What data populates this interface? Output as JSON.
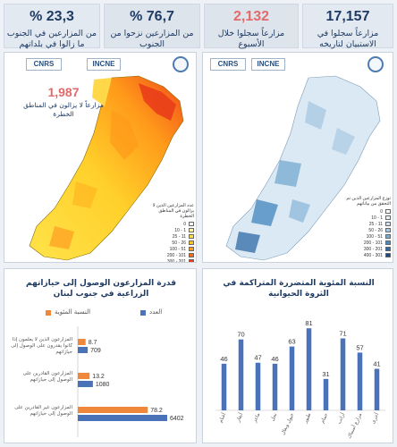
{
  "stats": [
    {
      "value": "23,3 %",
      "label": "من المزارعين في الجنوب ما زالوا في بلداتهم",
      "red": false
    },
    {
      "value": "76,7 %",
      "label": "من المزارعين نزحوا من الجنوب",
      "red": false
    },
    {
      "value": "2,132",
      "label": "مزارعاً سجلوا خلال الأسبوع",
      "red": true
    },
    {
      "value": "17,157",
      "label": "مزارعاً سجلوا في الاستبيان لتاريخه",
      "red": false
    }
  ],
  "left_map": {
    "logo1": "CNRS",
    "logo2": "INCNE",
    "big_number": "1,987",
    "big_label": "مزارعاً لا يزالون في المناطق الخطرة",
    "legend_title": "عدد المزارعين الذين لا يزالون في المناطق الخطرة",
    "legend": [
      {
        "label": "0",
        "color": "#ffffff"
      },
      {
        "label": "1 - 10",
        "color": "#fff6a0"
      },
      {
        "label": "11 - 25",
        "color": "#ffe04a"
      },
      {
        "label": "26 - 50",
        "color": "#ffc61a"
      },
      {
        "label": "51 - 100",
        "color": "#ff9a1a"
      },
      {
        "label": "101 - 200",
        "color": "#ff6a1a"
      },
      {
        "label": "201 - 300",
        "color": "#f03a1a"
      },
      {
        "label": "301 - 400",
        "color": "#c8141a"
      }
    ]
  },
  "right_map": {
    "logo1": "CNRS",
    "logo2": "INCNE",
    "legend_title": "توزع المزارعين الذين تم التحقق من بياناتهم",
    "legend": [
      {
        "label": "0",
        "color": "#ffffff"
      },
      {
        "label": "1 - 10",
        "color": "#eaf2f8"
      },
      {
        "label": "11 - 25",
        "color": "#cfe1ef"
      },
      {
        "label": "26 - 50",
        "color": "#a9c9e3"
      },
      {
        "label": "51 - 100",
        "color": "#7aacd2"
      },
      {
        "label": "101 - 200",
        "color": "#4b8bc0"
      },
      {
        "label": "201 - 300",
        "color": "#2f6aa6"
      },
      {
        "label": "301 - 400",
        "color": "#1c4a82"
      }
    ]
  },
  "left_chart": {
    "title": "قدرة المزارعون الوصول إلى حيازاتهم الزراعية في جنوب لبنان",
    "legend_pct": "النسبة المئوية",
    "legend_count": "العدد",
    "pct_color": "#f0883c",
    "count_color": "#4a72b8",
    "rows": [
      {
        "label": "المزارعون الذين لا يعلمون إذا كانوا يقدرون على الوصول إلى حيازاتهم",
        "pct_text": "8.7",
        "pct": 8.7,
        "count_text": "709",
        "count": 709
      },
      {
        "label": "المزارعون القادرين على الوصول إلى حيازاتهم",
        "pct_text": "13.2",
        "pct": 13.2,
        "count_text": "1080",
        "count": 1080
      },
      {
        "label": "المزارعون غير القادرين على الوصول إلى حيازاتهم",
        "pct_text": "78.2",
        "pct": 78.2,
        "count_text": "6402",
        "count": 6402
      }
    ]
  },
  "chart_data": {
    "type": "bar",
    "title": "النسبة المئوية المتضررة المتراكمة في الثروة الحيوانية",
    "categories": [
      "أغنام",
      "أبقار",
      "ماعز",
      "نحل",
      "خيول وبغال",
      "طيور",
      "حمام",
      "أرانب",
      "مزارع أسماك",
      "أخرى"
    ],
    "values": [
      46,
      70,
      47,
      46,
      63,
      81,
      31,
      71,
      57,
      41
    ],
    "ylim": [
      0,
      90
    ],
    "bar_color": "#4a72b8"
  }
}
